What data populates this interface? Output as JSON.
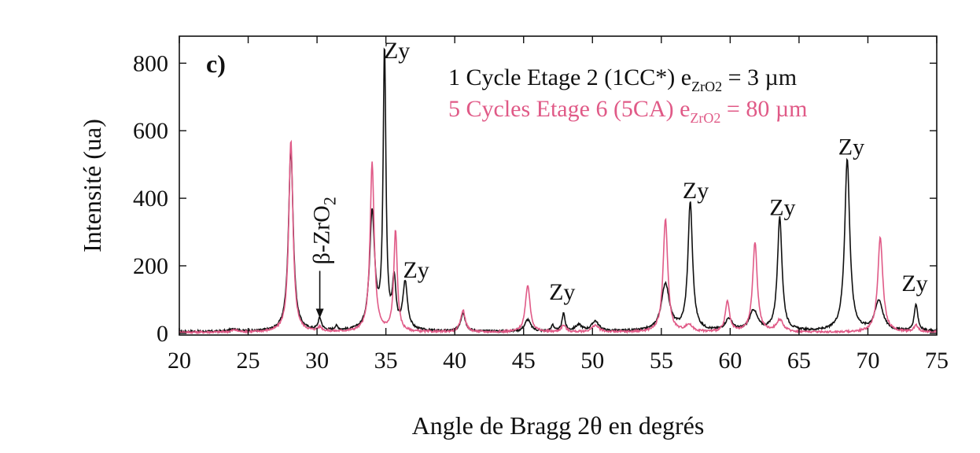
{
  "chart_data": {
    "type": "line",
    "panel_label": "c)",
    "xlabel": "Angle de Bragg 2θ en degrés",
    "ylabel": "Intensité (ua)",
    "xlim": [
      20,
      75
    ],
    "ylim": [
      -5,
      880
    ],
    "x_ticks": [
      20,
      25,
      30,
      35,
      40,
      45,
      50,
      55,
      60,
      65,
      70,
      75
    ],
    "y_ticks": [
      0,
      200,
      400,
      600,
      800
    ],
    "legend": {
      "placement": "top-right",
      "entries": [
        {
          "series": 0,
          "text": "1 Cycle Etage 2 (1CC*) e",
          "sub": "ZrO2",
          "suffix": " = 3 µm"
        },
        {
          "series": 1,
          "text": "5 Cycles Etage 6 (5CA) e",
          "sub": "ZrO2",
          "suffix": " = 80 µm"
        }
      ]
    },
    "series": [
      {
        "color": "#111111",
        "baseline": 5,
        "peaks": [
          [
            24.0,
            8,
            0.25
          ],
          [
            28.1,
            545,
            0.2
          ],
          [
            30.2,
            35,
            0.15
          ],
          [
            31.4,
            12,
            0.15
          ],
          [
            34.0,
            350,
            0.22
          ],
          [
            34.9,
            830,
            0.12
          ],
          [
            35.6,
            140,
            0.15
          ],
          [
            36.4,
            140,
            0.2
          ],
          [
            40.6,
            55,
            0.2
          ],
          [
            45.3,
            35,
            0.25
          ],
          [
            47.1,
            20,
            0.1
          ],
          [
            47.9,
            55,
            0.12
          ],
          [
            49.0,
            18,
            0.3
          ],
          [
            50.2,
            30,
            0.3
          ],
          [
            55.3,
            140,
            0.35
          ],
          [
            57.1,
            380,
            0.2
          ],
          [
            59.9,
            35,
            0.3
          ],
          [
            61.7,
            60,
            0.35
          ],
          [
            63.6,
            335,
            0.2
          ],
          [
            68.5,
            510,
            0.22
          ],
          [
            70.8,
            90,
            0.35
          ],
          [
            73.5,
            80,
            0.15
          ]
        ]
      },
      {
        "color": "#e05a87",
        "baseline": 3,
        "peaks": [
          [
            24.0,
            6,
            0.25
          ],
          [
            28.1,
            570,
            0.18
          ],
          [
            30.2,
            12,
            0.2
          ],
          [
            34.0,
            500,
            0.18
          ],
          [
            35.7,
            300,
            0.15
          ],
          [
            40.6,
            65,
            0.2
          ],
          [
            45.3,
            140,
            0.2
          ],
          [
            47.9,
            20,
            0.2
          ],
          [
            50.2,
            20,
            0.3
          ],
          [
            55.3,
            335,
            0.2
          ],
          [
            57.0,
            20,
            0.3
          ],
          [
            59.8,
            90,
            0.18
          ],
          [
            61.8,
            265,
            0.2
          ],
          [
            63.6,
            35,
            0.3
          ],
          [
            70.9,
            280,
            0.22
          ],
          [
            73.5,
            20,
            0.2
          ]
        ]
      }
    ],
    "annotations": [
      {
        "text": "Zy",
        "x": 35.8,
        "y": 815
      },
      {
        "text": "Zy",
        "x": 37.2,
        "y": 165
      },
      {
        "text": "Zy",
        "x": 47.8,
        "y": 100
      },
      {
        "text": "Zy",
        "x": 57.5,
        "y": 400
      },
      {
        "text": "Zy",
        "x": 63.8,
        "y": 350
      },
      {
        "text": "Zy",
        "x": 68.8,
        "y": 530
      },
      {
        "text": "Zy",
        "x": 73.4,
        "y": 125
      }
    ],
    "beta_label": {
      "text": "β-ZrO",
      "sub": "2",
      "x": 30.2,
      "y_arrow_top": 185,
      "y_arrow_bottom": 45
    }
  }
}
